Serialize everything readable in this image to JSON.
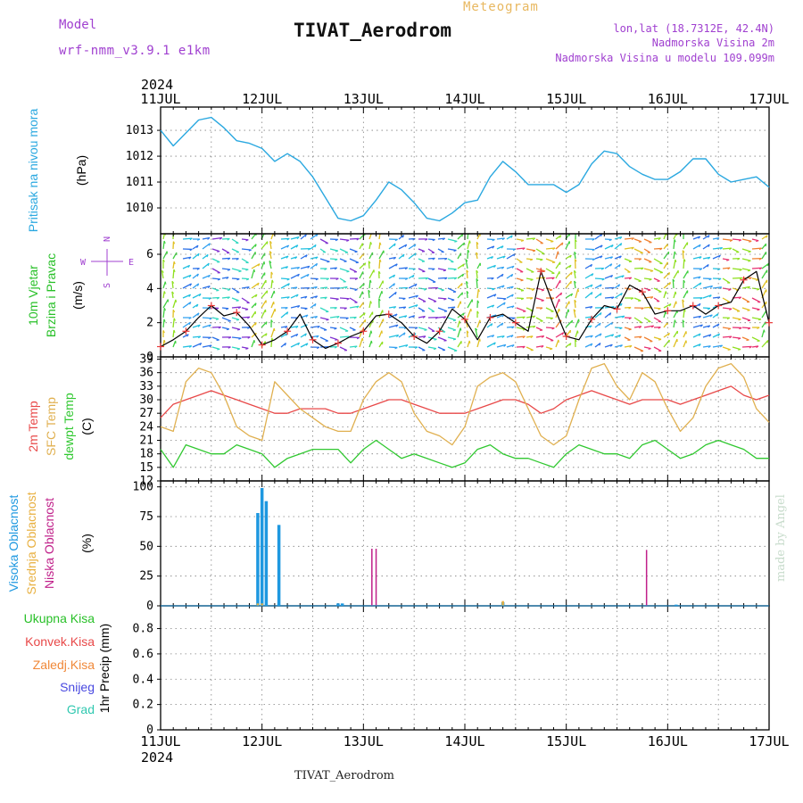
{
  "header": {
    "model_label": "Model",
    "model_value": "wrf-nmm_v3.9.1 e1km",
    "station": "TIVAT_Aerodrom",
    "product": "Meteogram",
    "lonlat": "lon,lat (18.7312E, 42.4N)",
    "elevation": "Nadmorska Visina 2m",
    "model_elevation": "Nadmorska Visina u modelu 109.099m"
  },
  "footer": {
    "station": "TIVAT_Aerodrom",
    "credit": "made by Angel"
  },
  "colors": {
    "pressure": "#2aa8e0",
    "temp2m": "#e84848",
    "sfc": "#e0b050",
    "dew": "#30c830",
    "high_cloud": "#1e98e0",
    "mid_cloud": "#e8b040",
    "low_cloud": "#c0208a",
    "wind_speed_line": "#000000",
    "wind_dir_marks": "#e83838",
    "label_green": "#28c028",
    "label_red": "#e84848",
    "label_orange": "#f08838",
    "label_blue": "#4848e0",
    "label_cyan": "#30c8b0",
    "label_purple": "#a040d0"
  },
  "chart_data": [
    {
      "id": "pressure",
      "type": "line",
      "ylabel": "Pritisak na nivou mora",
      "unit": "(hPa)",
      "y_ticks": [
        "1010",
        "1011",
        "1012",
        "1013"
      ],
      "ylim": [
        1009.0,
        1013.9
      ],
      "series": [
        {
          "x": [
            0,
            3,
            6,
            9,
            12,
            15,
            18,
            21,
            24,
            27,
            30,
            33,
            36,
            39,
            42,
            45,
            48,
            51,
            54,
            57,
            60,
            63,
            66,
            69,
            72,
            75,
            78,
            81,
            84,
            87,
            90,
            93,
            96,
            99,
            102,
            105,
            108,
            111,
            114,
            117,
            120,
            123,
            126,
            129,
            132,
            135,
            138,
            141,
            144
          ],
          "values": [
            1013.0,
            1012.4,
            1012.9,
            1013.4,
            1013.5,
            1013.1,
            1012.6,
            1012.5,
            1012.3,
            1011.8,
            1012.1,
            1011.8,
            1011.2,
            1010.4,
            1009.6,
            1009.5,
            1009.7,
            1010.3,
            1011.0,
            1010.7,
            1010.2,
            1009.6,
            1009.5,
            1009.8,
            1010.2,
            1010.3,
            1011.2,
            1011.8,
            1011.4,
            1010.9,
            1010.9,
            1010.9,
            1010.6,
            1010.9,
            1011.7,
            1012.2,
            1012.1,
            1011.6,
            1011.3,
            1011.1,
            1011.1,
            1011.4,
            1011.9,
            1011.9,
            1011.3,
            1011.0,
            1011.1,
            1011.2,
            1010.8
          ]
        }
      ]
    },
    {
      "id": "wind",
      "type": "line",
      "ylabel": "10m Vjetar Brzina i Pravac",
      "unit": "(m/s)",
      "compass": {
        "north": "N",
        "west": "W",
        "east": "E",
        "south": "S"
      },
      "y_ticks": [
        "0",
        "2",
        "4",
        "6"
      ],
      "ylim": [
        0,
        7.2
      ],
      "series": [
        {
          "name": "speed",
          "x": [
            0,
            3,
            6,
            9,
            12,
            15,
            18,
            21,
            24,
            27,
            30,
            33,
            36,
            39,
            42,
            45,
            48,
            51,
            54,
            57,
            60,
            63,
            66,
            69,
            72,
            75,
            78,
            81,
            84,
            87,
            90,
            93,
            96,
            99,
            102,
            105,
            108,
            111,
            114,
            117,
            120,
            123,
            126,
            129,
            132,
            135,
            138,
            141,
            144
          ],
          "values": [
            0.6,
            1.0,
            1.5,
            2.3,
            3.0,
            2.4,
            2.6,
            1.8,
            0.7,
            1.0,
            1.5,
            2.5,
            1.0,
            0.5,
            0.8,
            1.2,
            1.5,
            2.4,
            2.5,
            2.0,
            1.2,
            0.8,
            1.5,
            2.8,
            2.2,
            1.0,
            2.3,
            2.5,
            2.0,
            1.5,
            5.0,
            3.0,
            1.2,
            1.0,
            2.2,
            3.0,
            2.8,
            4.2,
            3.8,
            2.5,
            2.7,
            2.7,
            3.0,
            2.5,
            3.0,
            3.2,
            4.5,
            5.0,
            2.0
          ]
        }
      ]
    },
    {
      "id": "temperature",
      "type": "line",
      "ylabel": [
        "2m Temp",
        "SFC Temp",
        "dewpt Temp"
      ],
      "unit": "(C)",
      "y_ticks": [
        "12",
        "15",
        "18",
        "21",
        "24",
        "27",
        "30",
        "33",
        "36",
        "39"
      ],
      "ylim": [
        12,
        39.5
      ],
      "x": [
        0,
        3,
        6,
        9,
        12,
        15,
        18,
        21,
        24,
        27,
        30,
        33,
        36,
        39,
        42,
        45,
        48,
        51,
        54,
        57,
        60,
        63,
        66,
        69,
        72,
        75,
        78,
        81,
        84,
        87,
        90,
        93,
        96,
        99,
        102,
        105,
        108,
        111,
        114,
        117,
        120,
        123,
        126,
        129,
        132,
        135,
        138,
        141,
        144
      ],
      "series": [
        {
          "name": "2m Temp",
          "values": [
            26,
            29,
            30,
            31,
            32,
            31,
            30,
            29,
            28,
            27,
            27,
            28,
            28,
            28,
            27,
            27,
            28,
            29,
            30,
            30,
            29,
            28,
            27,
            27,
            27,
            28,
            29,
            30,
            30,
            29,
            27,
            28,
            30,
            31,
            32,
            31,
            30,
            29,
            30,
            30,
            30,
            29,
            30,
            31,
            32,
            33,
            31,
            30,
            31
          ]
        },
        {
          "name": "SFC Temp",
          "values": [
            24,
            23,
            34,
            37,
            36,
            31,
            24,
            22,
            21,
            34,
            31,
            28,
            26,
            24,
            23,
            23,
            30,
            34,
            36,
            34,
            27,
            23,
            22,
            20,
            24,
            33,
            35,
            36,
            34,
            28,
            22,
            20,
            22,
            30,
            37,
            38,
            33,
            30,
            36,
            34,
            28,
            23,
            26,
            33,
            37,
            38,
            35,
            28,
            25
          ]
        },
        {
          "name": "dewpt Temp",
          "values": [
            19,
            15,
            20,
            19,
            18,
            18,
            20,
            19,
            18,
            15,
            17,
            18,
            19,
            19,
            19,
            16,
            19,
            21,
            19,
            17,
            18,
            17,
            16,
            15,
            16,
            19,
            20,
            18,
            17,
            17,
            16,
            15,
            18,
            20,
            19,
            18,
            18,
            17,
            20,
            21,
            19,
            17,
            18,
            20,
            21,
            20,
            19,
            17,
            17
          ]
        }
      ]
    },
    {
      "id": "cloud",
      "type": "bar",
      "ylabel": [
        "Visoka Oblacnost",
        "Srednja Oblacnost",
        "Niska Oblacnost"
      ],
      "unit": "(%)",
      "y_ticks": [
        "0",
        "25",
        "50",
        "75",
        "100"
      ],
      "ylim": [
        0,
        105
      ],
      "series": [
        {
          "name": "Visoka Oblacnost",
          "x": [
            23,
            24,
            25,
            28,
            42,
            43,
            81,
            122
          ],
          "values": [
            78,
            99,
            88,
            68,
            2,
            2,
            3,
            1
          ]
        },
        {
          "name": "Srednja Oblacnost",
          "x": [
            23,
            24,
            81
          ],
          "values": [
            2,
            2,
            4
          ]
        },
        {
          "name": "Niska Oblacnost",
          "x": [
            50,
            51,
            115
          ],
          "values": [
            48,
            48,
            47
          ]
        }
      ]
    },
    {
      "id": "precip",
      "type": "bar",
      "ylabel": [
        "Ukupna Kisa",
        "Konvek.Kisa",
        "Zaledj.Kisa",
        "Snijeg",
        "Grad"
      ],
      "unit": "1hr Precip (mm)",
      "y_ticks": [
        "0",
        "0.2",
        "0.4",
        "0.6",
        "0.8"
      ],
      "ylim": [
        0,
        0.98
      ],
      "series": []
    }
  ],
  "time_axis": {
    "year": "2024",
    "labels": [
      "11JUL",
      "12JUL",
      "13JUL",
      "14JUL",
      "15JUL",
      "16JUL",
      "17JUL"
    ],
    "hours": [
      0,
      24,
      48,
      72,
      96,
      120,
      144
    ]
  }
}
